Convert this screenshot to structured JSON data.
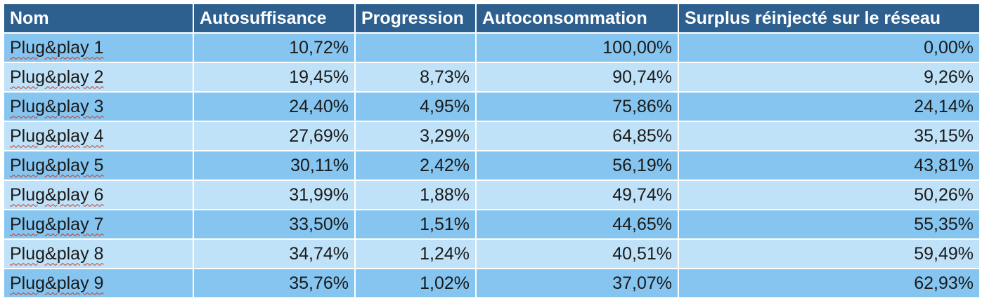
{
  "table": {
    "headers": [
      "Nom",
      "Autosuffisance",
      "Progression",
      "Autoconsommation",
      "Surplus réinjecté sur le réseau"
    ],
    "rows": [
      [
        "Plug&play 1",
        "10,72%",
        "",
        "100,00%",
        "0,00%"
      ],
      [
        "Plug&play 2",
        "19,45%",
        "8,73%",
        "90,74%",
        "9,26%"
      ],
      [
        "Plug&play 3",
        "24,40%",
        "4,95%",
        "75,86%",
        "24,14%"
      ],
      [
        "Plug&play 4",
        "27,69%",
        "3,29%",
        "64,85%",
        "35,15%"
      ],
      [
        "Plug&play 5",
        "30,11%",
        "2,42%",
        "56,19%",
        "43,81%"
      ],
      [
        "Plug&play 6",
        "31,99%",
        "1,88%",
        "49,74%",
        "50,26%"
      ],
      [
        "Plug&play 7",
        "33,50%",
        "1,51%",
        "44,65%",
        "55,35%"
      ],
      [
        "Plug&play 8",
        "34,74%",
        "1,24%",
        "40,51%",
        "59,49%"
      ],
      [
        "Plug&play 9",
        "35,76%",
        "1,02%",
        "37,07%",
        "62,93%"
      ]
    ]
  },
  "colors": {
    "header_bg": "#2d5f8f",
    "row_odd_bg": "#86c5f0",
    "row_even_bg": "#c0e2f8",
    "spellcheck_underline": "#c0392b"
  }
}
